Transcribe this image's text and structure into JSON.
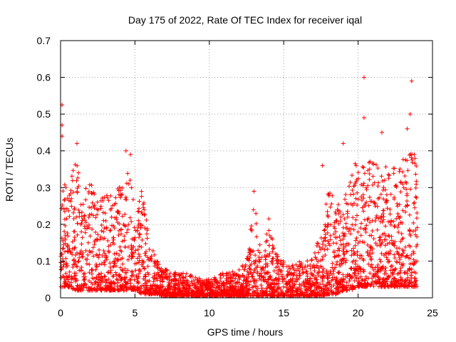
{
  "chart_data": {
    "type": "scatter",
    "title": "Day 175 of 2022, Rate Of TEC Index for receiver iqal",
    "xlabel": "GPS time / hours",
    "ylabel": "ROTI / TECUs",
    "xlim": [
      0,
      25
    ],
    "ylim": [
      0,
      0.7
    ],
    "x_ticks": [
      "0",
      "5",
      "10",
      "15",
      "20",
      "25"
    ],
    "y_ticks": [
      "0",
      "0.1",
      "0.2",
      "0.3",
      "0.4",
      "0.5",
      "0.6",
      "0.7"
    ],
    "grid": true,
    "marker": "+",
    "marker_color": "#ff0000",
    "envelope": {
      "x": [
        0,
        0.5,
        1,
        1.5,
        2,
        2.5,
        3,
        3.5,
        4,
        4.5,
        5,
        5.5,
        6,
        6.5,
        7,
        7.5,
        8,
        8.5,
        9,
        9.5,
        10,
        10.5,
        11,
        11.5,
        12,
        12.5,
        13,
        13.5,
        14,
        14.5,
        15,
        15.5,
        16,
        16.5,
        17,
        17.5,
        18,
        18.5,
        19,
        19.5,
        20,
        20.5,
        21,
        21.5,
        22,
        22.5,
        23,
        23.5,
        24
      ],
      "upper": [
        0.35,
        0.3,
        0.38,
        0.3,
        0.32,
        0.26,
        0.28,
        0.32,
        0.3,
        0.38,
        0.25,
        0.3,
        0.15,
        0.1,
        0.08,
        0.07,
        0.07,
        0.07,
        0.06,
        0.05,
        0.05,
        0.06,
        0.07,
        0.07,
        0.08,
        0.1,
        0.27,
        0.12,
        0.2,
        0.12,
        0.1,
        0.09,
        0.1,
        0.1,
        0.12,
        0.18,
        0.3,
        0.26,
        0.25,
        0.35,
        0.4,
        0.35,
        0.4,
        0.36,
        0.38,
        0.35,
        0.4,
        0.42,
        0.42
      ],
      "lower": [
        0.03,
        0.03,
        0.02,
        0.02,
        0.02,
        0.02,
        0.02,
        0.02,
        0.02,
        0.02,
        0.02,
        0.01,
        0.01,
        0.01,
        0.005,
        0.005,
        0.005,
        0.005,
        0.005,
        0.005,
        0.005,
        0.005,
        0.005,
        0.005,
        0.005,
        0.005,
        0.005,
        0.005,
        0.005,
        0.005,
        0.005,
        0.005,
        0.005,
        0.005,
        0.005,
        0.005,
        0.01,
        0.01,
        0.02,
        0.02,
        0.03,
        0.03,
        0.03,
        0.03,
        0.03,
        0.03,
        0.03,
        0.03,
        0.03
      ]
    },
    "outliers": [
      {
        "x": 0.1,
        "y": 0.525
      },
      {
        "x": 0.1,
        "y": 0.47
      },
      {
        "x": 0.1,
        "y": 0.44
      },
      {
        "x": 1.1,
        "y": 0.42
      },
      {
        "x": 4.4,
        "y": 0.4
      },
      {
        "x": 4.7,
        "y": 0.39
      },
      {
        "x": 13.0,
        "y": 0.29
      },
      {
        "x": 14.0,
        "y": 0.215
      },
      {
        "x": 17.6,
        "y": 0.36
      },
      {
        "x": 19.0,
        "y": 0.42
      },
      {
        "x": 20.4,
        "y": 0.6
      },
      {
        "x": 20.4,
        "y": 0.49
      },
      {
        "x": 21.6,
        "y": 0.45
      },
      {
        "x": 23.3,
        "y": 0.46
      },
      {
        "x": 23.5,
        "y": 0.5
      },
      {
        "x": 23.6,
        "y": 0.59
      }
    ]
  }
}
